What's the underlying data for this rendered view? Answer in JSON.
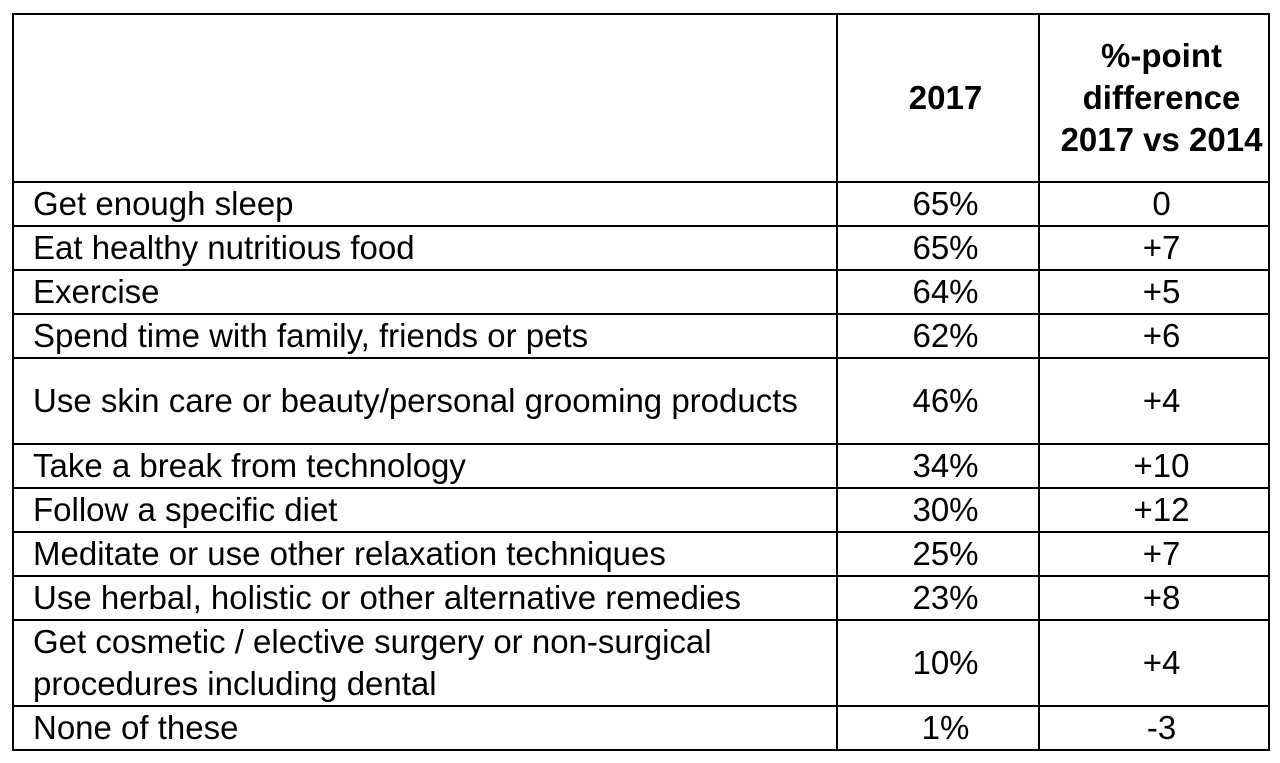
{
  "table": {
    "headers": {
      "activity": "",
      "year": "2017",
      "difference": "%-point difference 2017 vs 2014"
    },
    "rows": [
      {
        "activity": "Get enough sleep",
        "year": "65%",
        "difference": "0"
      },
      {
        "activity": "Eat healthy nutritious food",
        "year": "65%",
        "difference": "+7"
      },
      {
        "activity": "Exercise",
        "year": "64%",
        "difference": "+5"
      },
      {
        "activity": "Spend time with family, friends or pets",
        "year": "62%",
        "difference": "+6"
      },
      {
        "activity": "Use skin care or beauty/personal grooming products",
        "year": "46%",
        "difference": "+4"
      },
      {
        "activity": "Take a break from technology",
        "year": "34%",
        "difference": "+10"
      },
      {
        "activity": "Follow a specific diet",
        "year": "30%",
        "difference": "+12"
      },
      {
        "activity": "Meditate or use other relaxation techniques",
        "year": "25%",
        "difference": "+7"
      },
      {
        "activity": "Use herbal, holistic or other alternative remedies",
        "year": "23%",
        "difference": "+8"
      },
      {
        "activity": "Get cosmetic / elective surgery or non-surgical procedures including dental",
        "year": "10%",
        "difference": "+4"
      },
      {
        "activity": "None of these",
        "year": "1%",
        "difference": "-3"
      }
    ]
  }
}
